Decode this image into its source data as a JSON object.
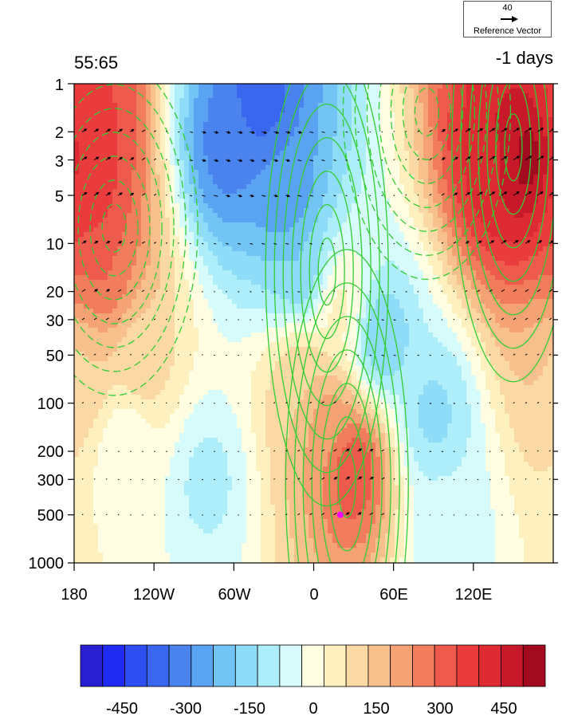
{
  "figure": {
    "left_title": "55:65",
    "right_title": "-1 days",
    "reference_vector": {
      "magnitude": "40",
      "label": "Reference Vector"
    }
  },
  "chart_data": {
    "type": "heatmap",
    "title": "",
    "xlabel": "",
    "ylabel": "",
    "x_axis": {
      "range": [
        -180,
        180
      ],
      "ticks": [
        -180,
        -120,
        -60,
        0,
        60,
        120
      ],
      "tick_labels": [
        "180",
        "120W",
        "60W",
        "0",
        "60E",
        "120E"
      ]
    },
    "y_axis": {
      "scale": "log",
      "reversed": true,
      "range": [
        1000,
        1
      ],
      "ticks": [
        1,
        2,
        3,
        5,
        10,
        20,
        30,
        50,
        100,
        200,
        300,
        500,
        1000
      ],
      "tick_labels": [
        "1",
        "2",
        "3",
        "5",
        "10",
        "20",
        "30",
        "50",
        "100",
        "200",
        "300",
        "500",
        "1000"
      ]
    },
    "colorbar": {
      "levels": [
        -525,
        -475,
        -425,
        -375,
        -325,
        -275,
        -225,
        -175,
        -125,
        -75,
        -25,
        25,
        75,
        125,
        175,
        225,
        275,
        325,
        375,
        425,
        475,
        525
      ],
      "colors": [
        "#2a1fd0",
        "#1f2bf0",
        "#2d4ff2",
        "#3b67f0",
        "#4a82ee",
        "#5aa2f2",
        "#72c4f4",
        "#8fdcf8",
        "#aeeefb",
        "#d7fbfb",
        "#fffde2",
        "#fff0bf",
        "#fad9a5",
        "#f8c08c",
        "#f5a274",
        "#f27d5d",
        "#ee5a4c",
        "#ea3b3d",
        "#de2a32",
        "#c8192a",
        "#a10a1f"
      ],
      "tick_values": [
        -450,
        -300,
        -150,
        0,
        150,
        300,
        450
      ],
      "tick_labels": [
        "-450",
        "-300",
        "-150",
        "0",
        "150",
        "300",
        "450"
      ]
    },
    "field_features": [
      {
        "lon": 160,
        "p": 3,
        "value": 510
      },
      {
        "lon": 140,
        "p": 3,
        "value": 420
      },
      {
        "lon": -170,
        "p": 5,
        "value": 360
      },
      {
        "lon": -165,
        "p": 1.5,
        "value": 330
      },
      {
        "lon": -160,
        "p": 15,
        "value": 280
      },
      {
        "lon": -175,
        "p": 60,
        "value": 120
      },
      {
        "lon": -40,
        "p": 1.2,
        "value": -360
      },
      {
        "lon": -65,
        "p": 2.5,
        "value": -300
      },
      {
        "lon": -20,
        "p": 5,
        "value": -270
      },
      {
        "lon": -10,
        "p": 15,
        "value": -180
      },
      {
        "lon": 50,
        "p": 40,
        "value": -180
      },
      {
        "lon": 90,
        "p": 120,
        "value": -140
      },
      {
        "lon": -80,
        "p": 300,
        "value": -90
      },
      {
        "lon": 30,
        "p": 250,
        "value": 330
      },
      {
        "lon": 10,
        "p": 130,
        "value": 210
      },
      {
        "lon": -10,
        "p": 70,
        "value": 120
      },
      {
        "lon": 20,
        "p": 25,
        "value": 40
      },
      {
        "lon": 100,
        "p": 600,
        "value": -60
      },
      {
        "lon": -140,
        "p": 180,
        "value": -30
      },
      {
        "lon": -130,
        "p": 60,
        "value": 100
      }
    ],
    "contour_centers": [
      {
        "lon": 25,
        "p": 320,
        "kind": "positive"
      },
      {
        "lon": 10,
        "p": 15,
        "kind": "positive"
      },
      {
        "lon": 150,
        "p": 2.5,
        "kind": "positive"
      },
      {
        "lon": -150,
        "p": 8,
        "kind": "negative"
      },
      {
        "lon": 85,
        "p": 1.5,
        "kind": "negative"
      }
    ],
    "vectors": {
      "reference_magnitude": 40
    },
    "marker": {
      "lon": 20,
      "p": 500,
      "color": "#ff00ff"
    }
  }
}
